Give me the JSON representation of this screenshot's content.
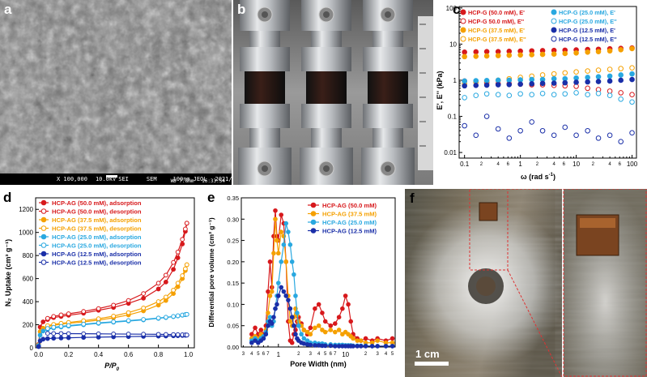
{
  "panel_labels": {
    "a": "a",
    "b": "b",
    "c": "c",
    "d": "d",
    "e": "e",
    "f": "f"
  },
  "sem": {
    "magnification": "X 100,000",
    "voltage": "10.0kV",
    "detector": "SEI",
    "mode": "SEM",
    "scale": "100nm",
    "brand": "JEOL",
    "date": "2021/05/15",
    "wd": "WD 7.8mm",
    "time": "16:33:54"
  },
  "photo_f": {
    "scale_label": "1 cm"
  },
  "chart_data": [
    {
      "id": "c",
      "type": "scatter",
      "xscale": "log",
      "yscale": "log",
      "xlabel_main": "ω (rad s",
      "xlabel_sup": "-1",
      "ylabel": "E', E'' (kPa)",
      "xlim": [
        0.08,
        120
      ],
      "ylim": [
        0.007,
        110
      ],
      "xticks": [
        "0.1",
        "1",
        "10",
        "100"
      ],
      "minor_labels": [
        "2",
        "4",
        "6"
      ],
      "yticks": [
        "0.01",
        "0.1",
        "1",
        "10",
        "100"
      ],
      "x": [
        0.1,
        0.16,
        0.25,
        0.4,
        0.63,
        1.0,
        1.6,
        2.5,
        4.0,
        6.3,
        10,
        16,
        25,
        40,
        63,
        100
      ],
      "legend": [
        {
          "label": "HCP-G (50.0 mM), E'",
          "color": "#d7191c",
          "filled": true
        },
        {
          "label": "HCP-G 50.0 mM), E''",
          "color": "#d7191c",
          "filled": false
        },
        {
          "label": "HCP-G (37.5 mM), E'",
          "color": "#f5a000",
          "filled": true
        },
        {
          "label": "HCP-G (37.5 mM), E''",
          "color": "#f5a000",
          "filled": false
        },
        {
          "label": "HCP-G (25.0 mM), E'",
          "color": "#29a8e0",
          "filled": true
        },
        {
          "label": "HCP-G (25.0 mM), E''",
          "color": "#29a8e0",
          "filled": false
        },
        {
          "label": "HCP-G (12.5 mM), E'",
          "color": "#1a2fa8",
          "filled": true
        },
        {
          "label": "HCP-G (12.5 mM), E''",
          "color": "#1a2fa8",
          "filled": false
        }
      ],
      "series": [
        {
          "name": "HCP-G (50.0 mM), E'",
          "color": "#d7191c",
          "filled": true,
          "values": [
            6.0,
            6.1,
            6.2,
            6.2,
            6.3,
            6.4,
            6.5,
            6.6,
            6.7,
            6.8,
            6.9,
            7.1,
            7.2,
            7.4,
            7.6,
            7.8
          ]
        },
        {
          "name": "HCP-G 50.0 mM), E''",
          "color": "#d7191c",
          "filled": false,
          "values": [
            0.95,
            0.9,
            0.85,
            0.8,
            0.8,
            0.78,
            0.75,
            0.75,
            0.72,
            0.7,
            0.68,
            0.6,
            0.55,
            0.5,
            0.45,
            0.4
          ]
        },
        {
          "name": "HCP-G (37.5 mM), E'",
          "color": "#f5a000",
          "filled": true,
          "values": [
            4.5,
            4.6,
            4.7,
            4.8,
            4.9,
            5.0,
            5.1,
            5.2,
            5.3,
            5.5,
            5.7,
            6.0,
            6.2,
            6.5,
            7.0,
            7.5
          ]
        },
        {
          "name": "HCP-G (37.5 mM), E''",
          "color": "#f5a000",
          "filled": false,
          "values": [
            0.8,
            0.9,
            0.95,
            1.0,
            1.1,
            1.2,
            1.3,
            1.4,
            1.5,
            1.6,
            1.7,
            1.8,
            1.9,
            2.0,
            2.1,
            2.2
          ]
        },
        {
          "name": "HCP-G (25.0 mM), E'",
          "color": "#29a8e0",
          "filled": true,
          "values": [
            0.95,
            0.97,
            0.98,
            1.0,
            1.0,
            1.02,
            1.05,
            1.05,
            1.1,
            1.1,
            1.15,
            1.2,
            1.25,
            1.3,
            1.4,
            1.5
          ]
        },
        {
          "name": "HCP-G (25.0 mM), E''",
          "color": "#29a8e0",
          "filled": false,
          "values": [
            0.33,
            0.38,
            0.42,
            0.4,
            0.38,
            0.42,
            0.4,
            0.43,
            0.4,
            0.42,
            0.45,
            0.4,
            0.43,
            0.38,
            0.3,
            0.25
          ]
        },
        {
          "name": "HCP-G (12.5 mM), E'",
          "color": "#1a2fa8",
          "filled": true,
          "values": [
            0.7,
            0.72,
            0.73,
            0.75,
            0.76,
            0.78,
            0.8,
            0.82,
            0.83,
            0.85,
            0.88,
            0.9,
            0.92,
            0.95,
            1.0,
            1.05
          ]
        },
        {
          "name": "HCP-G (12.5 mM), E''",
          "color": "#1a2fa8",
          "filled": false,
          "values": [
            0.055,
            0.03,
            0.1,
            0.045,
            0.025,
            0.04,
            0.07,
            0.04,
            0.03,
            0.05,
            0.03,
            0.04,
            0.025,
            0.03,
            0.02,
            0.035
          ]
        }
      ]
    },
    {
      "id": "d",
      "type": "line",
      "xlabel_main": "P/P",
      "xlabel_sub": "0",
      "ylabel": "N₂ Uptake (cm³ g⁻¹)",
      "xlim": [
        -0.02,
        1.04
      ],
      "ylim": [
        0,
        1300
      ],
      "xticks": [
        0.0,
        0.2,
        0.4,
        0.6,
        0.8,
        1.0
      ],
      "xtick_labels": [
        "0.0",
        "0.2",
        "0.4",
        "0.6",
        "0.8",
        "1.0"
      ],
      "yticks": [
        0,
        200,
        400,
        600,
        800,
        1000,
        1200
      ],
      "ytick_labels": [
        "0",
        "200",
        "400",
        "600",
        "800",
        "1000",
        "1200"
      ],
      "x": [
        0.0,
        0.01,
        0.03,
        0.06,
        0.1,
        0.15,
        0.2,
        0.3,
        0.4,
        0.5,
        0.6,
        0.7,
        0.8,
        0.85,
        0.9,
        0.93,
        0.96,
        0.98,
        0.99
      ],
      "series": [
        {
          "name": "HCP-AG (50.0 mM), adsorption",
          "color": "#d7191c",
          "filled": true,
          "values": [
            30,
            180,
            225,
            245,
            262,
            272,
            282,
            300,
            325,
            350,
            385,
            430,
            510,
            570,
            680,
            780,
            900,
            1010,
            1080
          ]
        },
        {
          "name": "HCP-AG (50.0 mM), desorption",
          "color": "#d7191c",
          "filled": false,
          "values": [
            null,
            null,
            null,
            255,
            272,
            285,
            295,
            315,
            340,
            370,
            410,
            470,
            560,
            630,
            740,
            830,
            940,
            1030,
            1080
          ]
        },
        {
          "name": "HCP-AG (37.5 mM), adsorption",
          "color": "#f5a000",
          "filled": true,
          "values": [
            25,
            140,
            170,
            185,
            195,
            205,
            212,
            225,
            240,
            260,
            285,
            320,
            370,
            410,
            470,
            530,
            600,
            670,
            720
          ]
        },
        {
          "name": "HCP-AG (37.5 mM), desorption",
          "color": "#f5a000",
          "filled": false,
          "values": [
            null,
            null,
            null,
            192,
            203,
            212,
            220,
            235,
            252,
            275,
            305,
            345,
            400,
            440,
            500,
            560,
            625,
            685,
            720
          ]
        },
        {
          "name": "HCP-AG (25.0 mM), adsorption",
          "color": "#29a8e0",
          "filled": true,
          "values": [
            20,
            110,
            145,
            160,
            172,
            180,
            188,
            200,
            212,
            222,
            232,
            242,
            255,
            262,
            270,
            276,
            282,
            287,
            290
          ]
        },
        {
          "name": "HCP-AG (25.0 mM), desorption",
          "color": "#29a8e0",
          "filled": false,
          "values": [
            null,
            null,
            null,
            168,
            178,
            186,
            193,
            205,
            216,
            226,
            236,
            246,
            258,
            265,
            272,
            278,
            284,
            288,
            290
          ]
        },
        {
          "name": "HCP-AG (12.5 mM), adsorption",
          "color": "#1a2fa8",
          "filled": true,
          "values": [
            10,
            60,
            75,
            80,
            83,
            85,
            87,
            90,
            92,
            95,
            97,
            99,
            101,
            102,
            104,
            105,
            107,
            108,
            110
          ]
        },
        {
          "name": "HCP-AG (12.5 mM), desorption",
          "color": "#1a2fa8",
          "filled": false,
          "values": [
            null,
            null,
            null,
            125,
            124,
            124,
            123,
            122,
            121,
            120,
            119,
            118,
            117,
            116,
            115,
            114,
            113,
            112,
            111
          ]
        }
      ]
    },
    {
      "id": "e",
      "type": "line",
      "xscale": "log",
      "xlabel": "Pore Width (nm)",
      "ylabel": "Differential pore volume (cm³ g⁻¹)",
      "xlim": [
        0.28,
        55
      ],
      "ylim": [
        0,
        0.35
      ],
      "xticks_major": [
        "1",
        "10"
      ],
      "xticks_minor": [
        "3",
        "4",
        "5",
        "6",
        "7",
        "2",
        "3",
        "4",
        "5",
        "6",
        "7",
        "2",
        "3",
        "4",
        "5"
      ],
      "yticks": [
        0.0,
        0.05,
        0.1,
        0.15,
        0.2,
        0.25,
        0.3,
        0.35
      ],
      "ytick_labels": [
        "0.00",
        "0.05",
        "0.10",
        "0.15",
        "0.20",
        "0.25",
        "0.30",
        "0.35"
      ],
      "x": [
        0.4,
        0.45,
        0.5,
        0.55,
        0.6,
        0.65,
        0.7,
        0.75,
        0.8,
        0.85,
        0.9,
        0.95,
        1.0,
        1.1,
        1.2,
        1.3,
        1.4,
        1.5,
        1.6,
        1.7,
        1.8,
        1.9,
        2.0,
        2.2,
        2.4,
        2.7,
        3.0,
        3.5,
        4.0,
        4.5,
        5.0,
        6.0,
        7.0,
        8.0,
        9.0,
        10,
        11,
        12,
        13,
        15,
        17,
        20,
        25,
        30,
        40,
        50
      ],
      "series": [
        {
          "name": "HCP-AG (50.0 mM)",
          "color": "#d7191c",
          "values": [
            0.03,
            0.045,
            0.03,
            0.04,
            0.03,
            0.05,
            0.13,
            0.2,
            0.14,
            0.26,
            0.32,
            0.26,
            0.25,
            0.31,
            0.29,
            0.2,
            0.06,
            0.015,
            0.01,
            0.03,
            0.04,
            0.06,
            0.07,
            0.055,
            0.04,
            0.03,
            0.045,
            0.09,
            0.1,
            0.08,
            0.06,
            0.05,
            0.055,
            0.07,
            0.09,
            0.12,
            0.1,
            0.06,
            0.03,
            0.02,
            0.015,
            0.02,
            0.015,
            0.02,
            0.015,
            0.02
          ]
        },
        {
          "name": "HCP-AG (37.5 mM)",
          "color": "#f5a000",
          "values": [
            0.02,
            0.025,
            0.02,
            0.03,
            0.025,
            0.04,
            0.08,
            0.12,
            0.13,
            0.22,
            0.3,
            0.25,
            0.22,
            0.27,
            0.26,
            0.2,
            0.12,
            0.06,
            0.05,
            0.07,
            0.09,
            0.075,
            0.06,
            0.05,
            0.04,
            0.035,
            0.03,
            0.045,
            0.05,
            0.04,
            0.035,
            0.04,
            0.035,
            0.04,
            0.03,
            0.035,
            0.03,
            0.025,
            0.02,
            0.015,
            0.015,
            0.01,
            0.01,
            0.015,
            0.01,
            0.01
          ]
        },
        {
          "name": "HCP-AG (25.0 mM)",
          "color": "#29a8e0",
          "values": [
            0.015,
            0.02,
            0.015,
            0.02,
            0.025,
            0.035,
            0.06,
            0.07,
            0.05,
            0.06,
            0.09,
            0.12,
            0.15,
            0.2,
            0.24,
            0.29,
            0.27,
            0.24,
            0.2,
            0.17,
            0.12,
            0.08,
            0.05,
            0.03,
            0.02,
            0.015,
            0.01,
            0.01,
            0.008,
            0.008,
            0.006,
            0.006,
            0.005,
            0.005,
            0.005,
            0.004,
            0.004,
            0.004,
            0.003,
            0.003,
            0.003,
            0.003,
            0.002,
            0.002,
            0.002,
            0.002
          ]
        },
        {
          "name": "HCP-AG (12.5 mM)",
          "color": "#1a2fa8",
          "values": [
            0.01,
            0.015,
            0.01,
            0.015,
            0.02,
            0.03,
            0.05,
            0.06,
            0.055,
            0.07,
            0.09,
            0.1,
            0.12,
            0.14,
            0.13,
            0.12,
            0.11,
            0.09,
            0.07,
            0.05,
            0.03,
            0.02,
            0.015,
            0.01,
            0.008,
            0.006,
            0.005,
            0.004,
            0.004,
            0.003,
            0.003,
            0.003,
            0.002,
            0.002,
            0.002,
            0.002,
            0.002,
            0.002,
            0.002,
            0.002,
            0.002,
            0.002,
            0.002,
            0.002,
            0.002,
            0.002
          ]
        }
      ]
    }
  ]
}
